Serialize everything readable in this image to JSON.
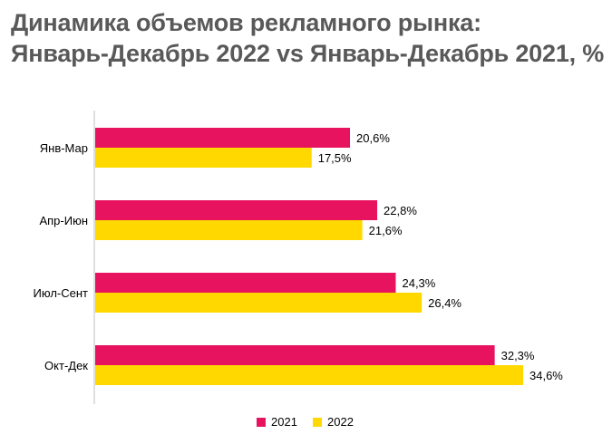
{
  "title_line1": "Динамика объемов рекламного рынка:",
  "title_line2": "Январь-Декабрь 2022 vs Январь-Декабрь 2021, %",
  "colors": {
    "s2021": "#e8135f",
    "s2022": "#ffd800",
    "axis": "#bfbfbf"
  },
  "chart_data": {
    "type": "bar",
    "orientation": "horizontal",
    "title": "Динамика объемов рекламного рынка: Январь-Декабрь 2022 vs Январь-Декабрь 2021, %",
    "categories": [
      "Янв-Мар",
      "Апр-Июн",
      "Июл-Сент",
      "Окт-Дек"
    ],
    "series": [
      {
        "name": "2021",
        "values": [
          20.6,
          22.8,
          24.3,
          32.3
        ],
        "labels": [
          "20,6%",
          "22,8%",
          "24,3%",
          "32,3%"
        ]
      },
      {
        "name": "2022",
        "values": [
          17.5,
          21.6,
          26.4,
          34.6
        ],
        "labels": [
          "17,5%",
          "21,6%",
          "26,4%",
          "34,6%"
        ]
      }
    ],
    "xlim": [
      0,
      34.6
    ],
    "legend_position": "bottom",
    "grid": false
  }
}
